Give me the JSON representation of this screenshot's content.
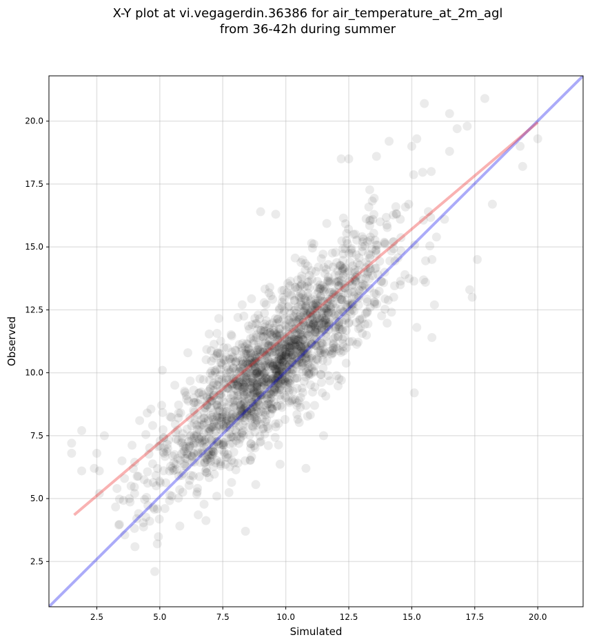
{
  "chart_data": {
    "type": "scatter",
    "title_line1": "X-Y plot at vi.vegagerdin.36386 for air_temperature_at_2m_agl",
    "title_line2": "from 36-42h during summer",
    "xlabel": "Simulated",
    "ylabel": "Observed",
    "xlim": [
      0.6,
      21.8
    ],
    "ylim": [
      0.7,
      21.8
    ],
    "x_ticks": [
      "2.5",
      "5.0",
      "7.5",
      "10.0",
      "12.5",
      "15.0",
      "17.5",
      "20.0"
    ],
    "y_ticks": [
      "2.5",
      "5.0",
      "7.5",
      "10.0",
      "12.5",
      "15.0",
      "17.5",
      "20.0"
    ],
    "grid": true,
    "point_color": "#000000",
    "point_alpha": 0.08,
    "n_points_approx": 1800,
    "identity_line": {
      "color": "#0000ee",
      "from": [
        0.6,
        0.7
      ],
      "to": [
        21.8,
        21.8
      ]
    },
    "regression_line": {
      "color": "#ee2222",
      "from": [
        1.6,
        4.35
      ],
      "to": [
        20.0,
        19.95
      ]
    },
    "outlier_points": [
      [
        1.5,
        7.2
      ],
      [
        1.5,
        6.8
      ],
      [
        1.9,
        7.7
      ],
      [
        1.9,
        6.1
      ],
      [
        2.5,
        6.8
      ],
      [
        2.6,
        6.1
      ],
      [
        2.8,
        7.5
      ],
      [
        2.4,
        6.2
      ],
      [
        2.6,
        5.2
      ],
      [
        3.3,
        5.4
      ],
      [
        3.6,
        5.8
      ],
      [
        3.5,
        6.5
      ],
      [
        4.0,
        5.2
      ],
      [
        4.6,
        4.1
      ],
      [
        4.9,
        3.2
      ],
      [
        4.8,
        2.1
      ],
      [
        8.4,
        3.7
      ],
      [
        4.2,
        8.1
      ],
      [
        4.5,
        8.4
      ],
      [
        5.1,
        10.1
      ],
      [
        9.0,
        16.4
      ],
      [
        9.6,
        16.3
      ],
      [
        10.8,
        6.2
      ],
      [
        11.5,
        7.5
      ],
      [
        12.2,
        18.5
      ],
      [
        12.5,
        18.5
      ],
      [
        13.6,
        18.6
      ],
      [
        14.1,
        19.2
      ],
      [
        15.0,
        19.0
      ],
      [
        15.2,
        19.3
      ],
      [
        15.5,
        20.7
      ],
      [
        16.5,
        20.3
      ],
      [
        17.9,
        20.9
      ],
      [
        17.2,
        19.8
      ],
      [
        16.8,
        19.7
      ],
      [
        19.4,
        18.2
      ],
      [
        20.0,
        19.3
      ],
      [
        18.2,
        16.7
      ],
      [
        17.6,
        14.5
      ],
      [
        17.4,
        13.0
      ],
      [
        17.3,
        13.3
      ],
      [
        15.8,
        11.4
      ],
      [
        15.1,
        9.2
      ],
      [
        15.9,
        12.7
      ],
      [
        15.2,
        11.8
      ],
      [
        16.3,
        16.1
      ],
      [
        15.8,
        14.5
      ],
      [
        16.5,
        18.8
      ],
      [
        19.3,
        19.0
      ]
    ]
  }
}
